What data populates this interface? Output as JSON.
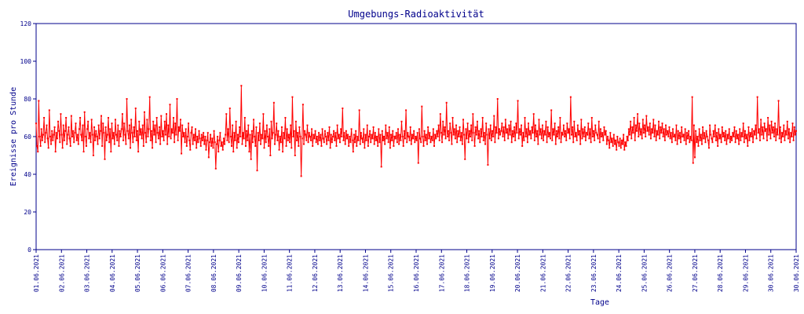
{
  "chart_data": {
    "type": "line",
    "title": "Umgebungs-Radioaktivität",
    "xlabel": "Tage",
    "ylabel": "Ereignisse pro Stunde",
    "ylim": [
      0,
      120
    ],
    "yticks": [
      0,
      20,
      40,
      60,
      80,
      100,
      120
    ],
    "xticks": [
      "01.06.2021",
      "02.06.2021",
      "03.06.2021",
      "04.06.2021",
      "05.06.2021",
      "06.06.2021",
      "07.06.2021",
      "08.06.2021",
      "09.06.2021",
      "10.06.2021",
      "11.06.2021",
      "12.06.2021",
      "13.06.2021",
      "14.06.2021",
      "15.06.2021",
      "16.06.2021",
      "17.06.2021",
      "18.06.2021",
      "19.06.2021",
      "20.06.2021",
      "21.06.2021",
      "22.06.2021",
      "23.06.2021",
      "24.06.2021",
      "25.06.2021",
      "26.06.2021",
      "27.06.2021",
      "28.06.2021",
      "29.06.2021",
      "30.06.2021",
      "30.06.2021"
    ],
    "grid": false,
    "colors": {
      "series": "#ff0000",
      "axis": "#00008b"
    },
    "x_start": "01.06.2021",
    "x_end": "30.06.2021",
    "samples_per_day": 24,
    "values": [
      67,
      55,
      52,
      79,
      60,
      55,
      64,
      58,
      61,
      70,
      57,
      62,
      66,
      59,
      54,
      74,
      60,
      56,
      63,
      58,
      61,
      65,
      52,
      62,
      59,
      68,
      63,
      57,
      72,
      61,
      54,
      66,
      58,
      63,
      70,
      56,
      61,
      65,
      59,
      55,
      71,
      60,
      63,
      57,
      62,
      67,
      58,
      61,
      56,
      64,
      70,
      61,
      58,
      66,
      52,
      73,
      60,
      55,
      64,
      68,
      59,
      62,
      57,
      69,
      61,
      50,
      65,
      58,
      63,
      60,
      56,
      66,
      59,
      63,
      71,
      55,
      67,
      62,
      48,
      65,
      58,
      61,
      70,
      57,
      64,
      52,
      67,
      59,
      62,
      56,
      69,
      61,
      58,
      66,
      55,
      63,
      60,
      64,
      72,
      58,
      67,
      61,
      56,
      80,
      63,
      59,
      66,
      54,
      69,
      62,
      57,
      65,
      60,
      75,
      58,
      63,
      52,
      68,
      61,
      64,
      59,
      66,
      55,
      73,
      62,
      57,
      69,
      60,
      64,
      81,
      58,
      63,
      54,
      68,
      61,
      66,
      57,
      70,
      62,
      59,
      65,
      56,
      71,
      60,
      63,
      58,
      68,
      61,
      72,
      56,
      66,
      60,
      77,
      59,
      64,
      62,
      70,
      57,
      67,
      61,
      80,
      58,
      65,
      63,
      69,
      51,
      66,
      60,
      62,
      57,
      64,
      55,
      60,
      67,
      58,
      53,
      62,
      65,
      56,
      61,
      58,
      64,
      54,
      60,
      57,
      63,
      59,
      55,
      61,
      58,
      62,
      56,
      60,
      53,
      58,
      62,
      49,
      57,
      61,
      55,
      59,
      54,
      63,
      57,
      43,
      56,
      60,
      52,
      58,
      62,
      55,
      57,
      53,
      59,
      56,
      61,
      72,
      58,
      64,
      57,
      75,
      60,
      55,
      66,
      52,
      62,
      58,
      68,
      54,
      61,
      57,
      65,
      60,
      87,
      56,
      62,
      59,
      70,
      55,
      63,
      58,
      66,
      52,
      61,
      48,
      63,
      57,
      69,
      60,
      55,
      65,
      42,
      62,
      58,
      67,
      56,
      61,
      59,
      72,
      54,
      63,
      57,
      66,
      60,
      55,
      64,
      50,
      68,
      59,
      62,
      78,
      56,
      61,
      67,
      58,
      63,
      53,
      60,
      57,
      65,
      52,
      62,
      59,
      70,
      55,
      64,
      58,
      61,
      57,
      66,
      54,
      81,
      60,
      63,
      50,
      68,
      58,
      62,
      55,
      65,
      60,
      39,
      59,
      77,
      56,
      63,
      61,
      58,
      66,
      57,
      62,
      60,
      58,
      64,
      55,
      61,
      59,
      63,
      57,
      60,
      56,
      62,
      58,
      61,
      55,
      64,
      59,
      57,
      63,
      60,
      56,
      62,
      58,
      65,
      54,
      61,
      57,
      60,
      63,
      58,
      62,
      55,
      66,
      59,
      61,
      57,
      64,
      60,
      75,
      58,
      62,
      56,
      63,
      59,
      61,
      55,
      60,
      57,
      64,
      58,
      52,
      61,
      57,
      63,
      55,
      60,
      58,
      74,
      56,
      62,
      59,
      57,
      64,
      54,
      61,
      58,
      66,
      55,
      60,
      63,
      57,
      61,
      59,
      65,
      56,
      62,
      58,
      60,
      55,
      64,
      57,
      61,
      44,
      63,
      58,
      60,
      56,
      66,
      59,
      62,
      57,
      65,
      54,
      61,
      58,
      63,
      55,
      60,
      59,
      62,
      57,
      64,
      56,
      61,
      58,
      68,
      60,
      55,
      63,
      59,
      74,
      57,
      62,
      60,
      58,
      65,
      56,
      61,
      59,
      63,
      57,
      60,
      58,
      62,
      46,
      64,
      59,
      57,
      76,
      60,
      55,
      63,
      58,
      61,
      56,
      65,
      59,
      62,
      57,
      60,
      58,
      64,
      55,
      61,
      59,
      63,
      60,
      66,
      58,
      72,
      62,
      57,
      68,
      61,
      65,
      59,
      78,
      60,
      63,
      58,
      67,
      62,
      56,
      70,
      61,
      64,
      59,
      66,
      57,
      63,
      60,
      65,
      58,
      62,
      56,
      69,
      61,
      48,
      64,
      59,
      67,
      57,
      63,
      60,
      66,
      58,
      72,
      62,
      55,
      65,
      61,
      68,
      59,
      63,
      57,
      64,
      60,
      70,
      58,
      62,
      56,
      67,
      61,
      45,
      64,
      59,
      66,
      58,
      63,
      60,
      71,
      57,
      65,
      62,
      80,
      59,
      64,
      61,
      63,
      67,
      60,
      65,
      58,
      69,
      62,
      64,
      59,
      66,
      61,
      68,
      57,
      63,
      60,
      65,
      58,
      67,
      62,
      79,
      59,
      64,
      61,
      66,
      55,
      62,
      58,
      70,
      60,
      64,
      57,
      67,
      61,
      63,
      59,
      65,
      62,
      72,
      58,
      66,
      60,
      63,
      56,
      69,
      61,
      64,
      59,
      66,
      58,
      63,
      61,
      68,
      57,
      65,
      60,
      62,
      59,
      74,
      58,
      64,
      61,
      67,
      56,
      63,
      60,
      65,
      59,
      70,
      57,
      62,
      61,
      66,
      60,
      63,
      58,
      67,
      62,
      64,
      59,
      81,
      61,
      65,
      57,
      68,
      60,
      62,
      58,
      66,
      61,
      63,
      56,
      69,
      59,
      64,
      60,
      65,
      58,
      62,
      61,
      67,
      59,
      64,
      57,
      70,
      60,
      63,
      58,
      66,
      62,
      61,
      59,
      68,
      57,
      64,
      60,
      62,
      58,
      65,
      61,
      63,
      56,
      60,
      58,
      54,
      62,
      57,
      59,
      55,
      61,
      56,
      58,
      53,
      60,
      57,
      55,
      59,
      54,
      58,
      56,
      61,
      53,
      57,
      55,
      60,
      58,
      64,
      61,
      68,
      59,
      65,
      62,
      70,
      58,
      66,
      63,
      72,
      60,
      67,
      61,
      64,
      59,
      69,
      62,
      66,
      60,
      71,
      63,
      65,
      61,
      67,
      59,
      64,
      62,
      69,
      60,
      66,
      58,
      63,
      61,
      68,
      59,
      65,
      62,
      67,
      60,
      64,
      58,
      66,
      61,
      63,
      60,
      65,
      59,
      62,
      57,
      64,
      60,
      61,
      58,
      66,
      56,
      63,
      59,
      62,
      57,
      65,
      60,
      61,
      58,
      64,
      56,
      62,
      59,
      63,
      57,
      60,
      58,
      81,
      46,
      66,
      49,
      63,
      57,
      60,
      55,
      64,
      58,
      61,
      56,
      65,
      59,
      62,
      57,
      63,
      60,
      58,
      54,
      66,
      61,
      59,
      57,
      63,
      60,
      66,
      58,
      62,
      55,
      64,
      59,
      61,
      57,
      65,
      60,
      62,
      58,
      63,
      56,
      61,
      59,
      64,
      57,
      60,
      58,
      62,
      60,
      65,
      57,
      63,
      59,
      61,
      56,
      64,
      58,
      62,
      60,
      67,
      57,
      63,
      59,
      61,
      55,
      65,
      58,
      62,
      60,
      64,
      57,
      63,
      61,
      66,
      59,
      81,
      62,
      64,
      58,
      69,
      61,
      65,
      59,
      67,
      63,
      64,
      58,
      70,
      61,
      66,
      59,
      68,
      62,
      65,
      60,
      67,
      58,
      64,
      61,
      79,
      59,
      65,
      57,
      62,
      60,
      66,
      58,
      63,
      61,
      68,
      59,
      64,
      57,
      62,
      60,
      67,
      58,
      65,
      61,
      63
    ]
  }
}
